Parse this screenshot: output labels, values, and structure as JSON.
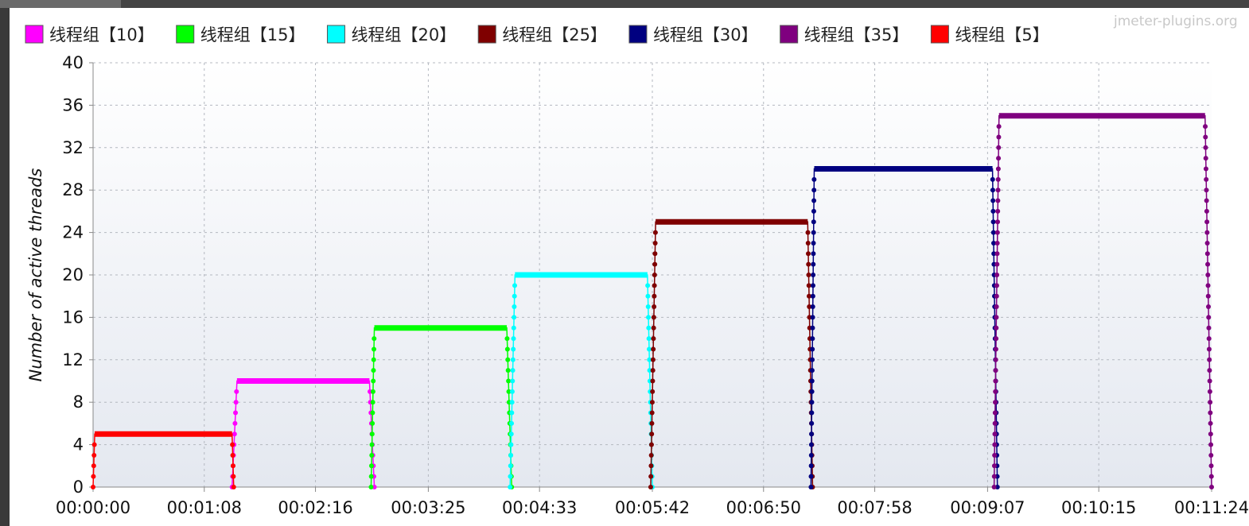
{
  "watermark": "jmeter-plugins.org",
  "colors": {
    "background": "#ffffff",
    "plot_background": "#eef1f6",
    "grid": "#b4b8c0",
    "axis": "#888888"
  },
  "chart_data": {
    "type": "line",
    "title": "",
    "xlabel": "",
    "ylabel": "Number of active threads",
    "x_unit": "seconds",
    "xlim": [
      0,
      684
    ],
    "ylim": [
      0,
      40
    ],
    "yticks": [
      0,
      4,
      8,
      12,
      16,
      20,
      24,
      28,
      32,
      36,
      40
    ],
    "xticks": [
      {
        "value": 0,
        "label": "00:00:00"
      },
      {
        "value": 68,
        "label": "00:01:08"
      },
      {
        "value": 136,
        "label": "00:02:16"
      },
      {
        "value": 205,
        "label": "00:03:25"
      },
      {
        "value": 273,
        "label": "00:04:33"
      },
      {
        "value": 342,
        "label": "00:05:42"
      },
      {
        "value": 410,
        "label": "00:06:50"
      },
      {
        "value": 478,
        "label": "00:07:58"
      },
      {
        "value": 547,
        "label": "00:09:07"
      },
      {
        "value": 615,
        "label": "00:10:15"
      },
      {
        "value": 684,
        "label": "00:11:24"
      }
    ],
    "grid": true,
    "legend_position": "top",
    "series": [
      {
        "name": "线程组【10】",
        "color": "#ff00ff",
        "max_threads": 10,
        "ramp_up_start": 85,
        "ramp_up_end": 88,
        "plateau_end": 169,
        "ramp_down_end": 172
      },
      {
        "name": "线程组【15】",
        "color": "#00ff00",
        "max_threads": 15,
        "ramp_up_start": 170,
        "ramp_up_end": 172,
        "plateau_end": 253,
        "ramp_down_end": 256
      },
      {
        "name": "线程组【20】",
        "color": "#00ffff",
        "max_threads": 20,
        "ramp_up_start": 255,
        "ramp_up_end": 258,
        "plateau_end": 339,
        "ramp_down_end": 342
      },
      {
        "name": "线程组【25】",
        "color": "#7f0000",
        "max_threads": 25,
        "ramp_up_start": 341,
        "ramp_up_end": 344,
        "plateau_end": 437,
        "ramp_down_end": 440
      },
      {
        "name": "线程组【30】",
        "color": "#000080",
        "max_threads": 30,
        "ramp_up_start": 439,
        "ramp_up_end": 441,
        "plateau_end": 550,
        "ramp_down_end": 553
      },
      {
        "name": "线程组【35】",
        "color": "#7f007f",
        "max_threads": 35,
        "ramp_up_start": 551,
        "ramp_up_end": 554,
        "plateau_end": 680,
        "ramp_down_end": 684
      },
      {
        "name": "线程组【5】",
        "color": "#ff0000",
        "max_threads": 5,
        "ramp_up_start": 0,
        "ramp_up_end": 1,
        "plateau_end": 85,
        "ramp_down_end": 86
      }
    ]
  }
}
